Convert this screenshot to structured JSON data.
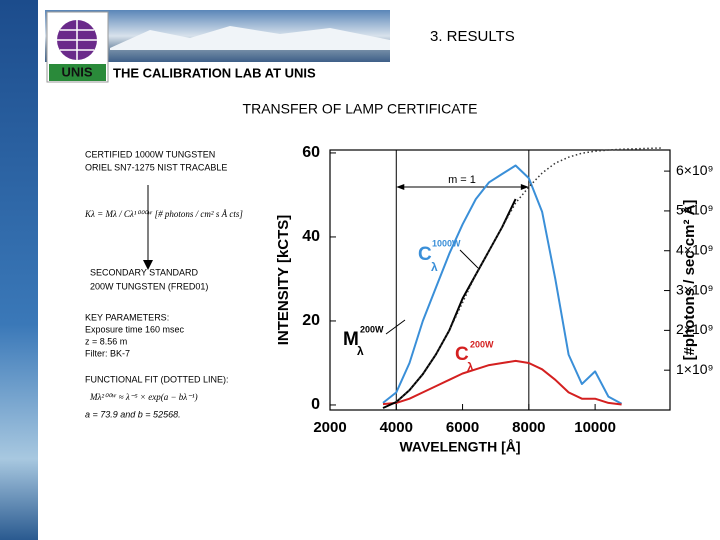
{
  "header": {
    "logo_text": "UNIS",
    "section": "3. RESULTS",
    "lab": "THE CALIBRATION LAB AT UNIS",
    "title": "TRANSFER OF LAMP CERTIFICATE"
  },
  "notes": {
    "certified": [
      "CERTIFIED 1000W TUNGSTEN",
      "ORIEL SN7-1275 NIST TRACABLE"
    ],
    "formula_transfer": "Kλ = Mλ / Cλ¹⁰⁰⁰ᵂ [# photons / cm² s Å cts]",
    "secondary": [
      "SECONDARY STANDARD",
      "200W TUNGSTEN (FRED01)"
    ],
    "key_parameters": [
      "KEY PARAMETERS:",
      "Exposure time 160 msec",
      "z = 8.56 m",
      "Filter: BK-7"
    ],
    "fit_title": "FUNCTIONAL FIT (DOTTED LINE):",
    "formula_fit": "Mλ²⁰⁰ᵂ ≈ λ⁻⁵ × exp(a − bλ⁻¹)",
    "fit_params": "a = 73.9 and b = 52568."
  },
  "chart_data": {
    "type": "line",
    "x_label": "WAVELENGTH [Å]",
    "y_label": "INTENSITY [kCTS]",
    "y2_label": "[#photons / sec cm² Å]",
    "x": [
      3600,
      4000,
      4400,
      4800,
      5200,
      5600,
      6000,
      6400,
      6800,
      7200,
      7600,
      8000,
      8400,
      8800,
      9200,
      9600,
      10000,
      10400,
      10800,
      11200,
      11600,
      12000
    ],
    "series": [
      {
        "color": "#3a8fd8",
        "values": [
          0.5,
          3,
          10,
          20,
          28,
          36,
          43,
          49,
          53,
          55,
          57,
          54,
          46,
          30,
          12,
          5,
          8,
          2,
          0.3,
          null,
          null,
          null
        ]
      },
      {
        "color": "#d42020",
        "values": [
          0.2,
          0.5,
          1.5,
          3,
          4.5,
          6,
          7.5,
          8.5,
          9.5,
          10,
          10.5,
          10,
          8.5,
          6,
          3,
          1.5,
          1.5,
          0.5,
          0.1,
          null,
          null,
          null
        ]
      },
      {
        "color": "#000000",
        "axis": "y2",
        "values": [
          50000000,
          200000000,
          500000000,
          900000000,
          1400000000,
          2000000000,
          2800000000,
          3400000000,
          4000000000,
          4600000000,
          5300000000,
          null,
          null,
          null,
          null,
          null,
          null,
          null,
          null,
          null,
          null,
          null
        ]
      },
      {
        "color": "#333333",
        "axis": "y2",
        "dotted": true,
        "values": [
          null,
          200000000,
          500000000,
          900000000,
          1400000000,
          2000000000,
          2700000000,
          3400000000,
          4000000000,
          4600000000,
          5200000000,
          5600000000,
          5950000000,
          6200000000,
          6350000000,
          6450000000,
          6500000000,
          6530000000,
          6550000000,
          6560000000,
          6570000000,
          6580000000
        ]
      }
    ],
    "reference_lines": [
      4000,
      8000
    ],
    "annotations": [
      "m = 1",
      "C",
      "1000W",
      "λ",
      "M",
      "200W",
      "λ",
      "C",
      "200W",
      "λ"
    ],
    "xlim": [
      2000,
      12260
    ],
    "xticks": [
      2000,
      4000,
      6000,
      8000,
      10000
    ],
    "ylim": [
      -1.2,
      60.7
    ],
    "yticks": [
      0,
      20,
      40,
      60
    ],
    "y2lim": [
      0,
      6530000000
    ],
    "y2ticks": [
      {
        "value": 1000000000,
        "label": "1×10⁹"
      },
      {
        "value": 2000000000,
        "label": "2×10⁹"
      },
      {
        "value": 3000000000,
        "label": "3×10⁹"
      },
      {
        "value": 4000000000,
        "label": "4×10⁹"
      },
      {
        "value": 5000000000,
        "label": "5×10⁹"
      },
      {
        "value": 6000000000,
        "label": "6×10⁹"
      }
    ]
  }
}
